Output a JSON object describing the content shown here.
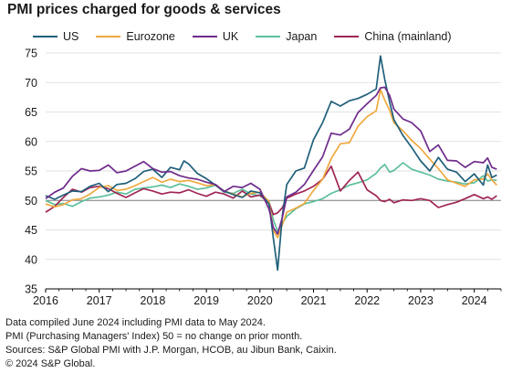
{
  "title": "PMI prices charged for goods & services",
  "notes": [
    "Data compiled June 2024 including PMI data to May 2024.",
    "PMI (Purchasing Managers' Index) 50 = no change on prior month.",
    "Sources: S&P Global PMI with J.P. Morgan, HCOB, au Jibun Bank, Caixin.",
    "© 2024 S&P Global."
  ],
  "chart_data": {
    "type": "line",
    "title": "PMI prices charged for goods & services",
    "xlabel": "",
    "ylabel": "",
    "xlim": [
      2016.0,
      2024.5
    ],
    "ylim": [
      35,
      75
    ],
    "yticks": [
      35,
      40,
      45,
      50,
      55,
      60,
      65,
      70,
      75
    ],
    "xticks": [
      "2016",
      "2017",
      "2018",
      "2019",
      "2020",
      "2021",
      "2022",
      "2023",
      "2024"
    ],
    "reference_line": 50,
    "grid": "horizontal",
    "legend_position": "top",
    "series": [
      {
        "name": "US",
        "color": "#1f5f7a",
        "points": [
          [
            2016.0,
            50.8
          ],
          [
            2016.17,
            50.2
          ],
          [
            2016.33,
            50.9
          ],
          [
            2016.5,
            51.6
          ],
          [
            2016.67,
            51.5
          ],
          [
            2016.83,
            52.4
          ],
          [
            2017.0,
            52.9
          ],
          [
            2017.17,
            51.5
          ],
          [
            2017.33,
            52.7
          ],
          [
            2017.5,
            52.9
          ],
          [
            2017.67,
            53.7
          ],
          [
            2017.83,
            54.9
          ],
          [
            2018.0,
            55.3
          ],
          [
            2018.17,
            53.9
          ],
          [
            2018.33,
            55.6
          ],
          [
            2018.5,
            55.2
          ],
          [
            2018.58,
            56.7
          ],
          [
            2018.67,
            56.2
          ],
          [
            2018.83,
            54.6
          ],
          [
            2019.0,
            53.7
          ],
          [
            2019.17,
            52.6
          ],
          [
            2019.33,
            51.6
          ],
          [
            2019.5,
            51.0
          ],
          [
            2019.67,
            50.5
          ],
          [
            2019.83,
            51.6
          ],
          [
            2020.0,
            51.3
          ],
          [
            2020.17,
            49.4
          ],
          [
            2020.25,
            43.6
          ],
          [
            2020.33,
            38.2
          ],
          [
            2020.42,
            47.6
          ],
          [
            2020.5,
            52.7
          ],
          [
            2020.67,
            55.0
          ],
          [
            2020.83,
            55.5
          ],
          [
            2021.0,
            60.3
          ],
          [
            2021.17,
            63.2
          ],
          [
            2021.33,
            66.8
          ],
          [
            2021.5,
            66.0
          ],
          [
            2021.67,
            66.9
          ],
          [
            2021.83,
            67.3
          ],
          [
            2022.0,
            68.0
          ],
          [
            2022.17,
            68.9
          ],
          [
            2022.25,
            74.5
          ],
          [
            2022.33,
            70.5
          ],
          [
            2022.42,
            66.7
          ],
          [
            2022.5,
            63.7
          ],
          [
            2022.67,
            61.0
          ],
          [
            2022.83,
            59.0
          ],
          [
            2023.0,
            56.7
          ],
          [
            2023.17,
            55.0
          ],
          [
            2023.33,
            57.3
          ],
          [
            2023.5,
            55.3
          ],
          [
            2023.67,
            54.8
          ],
          [
            2023.83,
            53.2
          ],
          [
            2024.0,
            54.5
          ],
          [
            2024.17,
            52.6
          ],
          [
            2024.25,
            56.0
          ],
          [
            2024.33,
            53.9
          ],
          [
            2024.42,
            54.3
          ]
        ]
      },
      {
        "name": "Eurozone",
        "color": "#f0a940",
        "points": [
          [
            2016.0,
            49.4
          ],
          [
            2016.17,
            48.9
          ],
          [
            2016.33,
            49.3
          ],
          [
            2016.5,
            50.1
          ],
          [
            2016.67,
            50.3
          ],
          [
            2016.83,
            51.1
          ],
          [
            2017.0,
            52.2
          ],
          [
            2017.17,
            52.5
          ],
          [
            2017.33,
            51.7
          ],
          [
            2017.5,
            51.9
          ],
          [
            2017.67,
            52.5
          ],
          [
            2017.83,
            53.2
          ],
          [
            2018.0,
            53.9
          ],
          [
            2018.17,
            53.1
          ],
          [
            2018.33,
            53.6
          ],
          [
            2018.5,
            53.2
          ],
          [
            2018.67,
            53.4
          ],
          [
            2018.83,
            53.0
          ],
          [
            2019.0,
            52.5
          ],
          [
            2019.17,
            52.7
          ],
          [
            2019.33,
            51.6
          ],
          [
            2019.5,
            51.1
          ],
          [
            2019.67,
            50.6
          ],
          [
            2019.83,
            51.2
          ],
          [
            2020.0,
            51.4
          ],
          [
            2020.17,
            49.8
          ],
          [
            2020.25,
            44.9
          ],
          [
            2020.33,
            43.7
          ],
          [
            2020.42,
            45.9
          ],
          [
            2020.5,
            48.0
          ],
          [
            2020.67,
            48.7
          ],
          [
            2020.83,
            49.5
          ],
          [
            2021.0,
            51.7
          ],
          [
            2021.17,
            53.6
          ],
          [
            2021.33,
            57.1
          ],
          [
            2021.5,
            59.6
          ],
          [
            2021.67,
            59.8
          ],
          [
            2021.83,
            62.6
          ],
          [
            2022.0,
            64.2
          ],
          [
            2022.17,
            65.2
          ],
          [
            2022.25,
            68.8
          ],
          [
            2022.33,
            67.0
          ],
          [
            2022.42,
            65.3
          ],
          [
            2022.5,
            63.2
          ],
          [
            2022.67,
            61.8
          ],
          [
            2022.83,
            60.2
          ],
          [
            2023.0,
            58.8
          ],
          [
            2023.17,
            57.0
          ],
          [
            2023.33,
            55.4
          ],
          [
            2023.5,
            53.5
          ],
          [
            2023.67,
            52.9
          ],
          [
            2023.83,
            52.4
          ],
          [
            2024.0,
            53.5
          ],
          [
            2024.17,
            53.6
          ],
          [
            2024.25,
            54.5
          ],
          [
            2024.33,
            53.5
          ],
          [
            2024.42,
            52.6
          ]
        ]
      },
      {
        "name": "UK",
        "color": "#6f2b8c",
        "points": [
          [
            2016.0,
            50.3
          ],
          [
            2016.17,
            51.4
          ],
          [
            2016.33,
            52.1
          ],
          [
            2016.5,
            54.1
          ],
          [
            2016.67,
            55.4
          ],
          [
            2016.83,
            55.0
          ],
          [
            2017.0,
            55.1
          ],
          [
            2017.17,
            56.0
          ],
          [
            2017.33,
            54.7
          ],
          [
            2017.5,
            55.0
          ],
          [
            2017.67,
            55.8
          ],
          [
            2017.83,
            56.6
          ],
          [
            2018.0,
            55.4
          ],
          [
            2018.17,
            54.8
          ],
          [
            2018.33,
            54.9
          ],
          [
            2018.5,
            54.2
          ],
          [
            2018.67,
            53.8
          ],
          [
            2018.83,
            53.6
          ],
          [
            2019.0,
            53.1
          ],
          [
            2019.17,
            52.7
          ],
          [
            2019.33,
            51.5
          ],
          [
            2019.5,
            52.4
          ],
          [
            2019.67,
            52.2
          ],
          [
            2019.83,
            52.9
          ],
          [
            2020.0,
            51.9
          ],
          [
            2020.17,
            48.5
          ],
          [
            2020.25,
            45.4
          ],
          [
            2020.33,
            44.3
          ],
          [
            2020.42,
            47.2
          ],
          [
            2020.5,
            50.6
          ],
          [
            2020.67,
            51.4
          ],
          [
            2020.83,
            52.7
          ],
          [
            2021.0,
            55.1
          ],
          [
            2021.17,
            57.4
          ],
          [
            2021.33,
            61.4
          ],
          [
            2021.5,
            61.1
          ],
          [
            2021.67,
            62.1
          ],
          [
            2021.83,
            64.9
          ],
          [
            2022.0,
            66.4
          ],
          [
            2022.17,
            67.8
          ],
          [
            2022.25,
            69.1
          ],
          [
            2022.33,
            69.2
          ],
          [
            2022.42,
            67.8
          ],
          [
            2022.5,
            65.5
          ],
          [
            2022.67,
            63.8
          ],
          [
            2022.83,
            63.2
          ],
          [
            2023.0,
            61.8
          ],
          [
            2023.17,
            58.3
          ],
          [
            2023.33,
            59.4
          ],
          [
            2023.5,
            56.8
          ],
          [
            2023.67,
            56.7
          ],
          [
            2023.83,
            55.6
          ],
          [
            2024.0,
            56.6
          ],
          [
            2024.17,
            56.4
          ],
          [
            2024.25,
            57.2
          ],
          [
            2024.33,
            55.6
          ],
          [
            2024.42,
            55.3
          ]
        ]
      },
      {
        "name": "Japan",
        "color": "#5dbf9a",
        "points": [
          [
            2016.0,
            50.0
          ],
          [
            2016.17,
            49.3
          ],
          [
            2016.33,
            49.5
          ],
          [
            2016.5,
            49.0
          ],
          [
            2016.67,
            49.8
          ],
          [
            2016.83,
            50.4
          ],
          [
            2017.0,
            50.6
          ],
          [
            2017.17,
            50.9
          ],
          [
            2017.33,
            51.4
          ],
          [
            2017.5,
            51.1
          ],
          [
            2017.67,
            51.9
          ],
          [
            2017.83,
            52.1
          ],
          [
            2018.0,
            52.3
          ],
          [
            2018.17,
            52.6
          ],
          [
            2018.33,
            52.2
          ],
          [
            2018.5,
            52.8
          ],
          [
            2018.67,
            52.4
          ],
          [
            2018.83,
            51.9
          ],
          [
            2019.0,
            52.1
          ],
          [
            2019.17,
            52.6
          ],
          [
            2019.33,
            51.4
          ],
          [
            2019.5,
            51.2
          ],
          [
            2019.67,
            51.9
          ],
          [
            2019.83,
            51.1
          ],
          [
            2020.0,
            50.8
          ],
          [
            2020.17,
            49.6
          ],
          [
            2020.25,
            46.7
          ],
          [
            2020.33,
            44.8
          ],
          [
            2020.42,
            46.2
          ],
          [
            2020.5,
            47.3
          ],
          [
            2020.67,
            48.6
          ],
          [
            2020.83,
            49.4
          ],
          [
            2021.0,
            49.8
          ],
          [
            2021.17,
            50.3
          ],
          [
            2021.33,
            51.2
          ],
          [
            2021.5,
            51.8
          ],
          [
            2021.67,
            52.6
          ],
          [
            2021.83,
            53.0
          ],
          [
            2022.0,
            53.5
          ],
          [
            2022.17,
            54.6
          ],
          [
            2022.25,
            55.5
          ],
          [
            2022.33,
            56.1
          ],
          [
            2022.42,
            54.8
          ],
          [
            2022.5,
            55.1
          ],
          [
            2022.67,
            56.4
          ],
          [
            2022.83,
            55.3
          ],
          [
            2023.0,
            54.8
          ],
          [
            2023.17,
            54.3
          ],
          [
            2023.33,
            53.6
          ],
          [
            2023.5,
            53.3
          ],
          [
            2023.67,
            53.1
          ],
          [
            2023.83,
            52.8
          ],
          [
            2024.0,
            53.0
          ],
          [
            2024.17,
            54.2
          ],
          [
            2024.25,
            53.3
          ],
          [
            2024.33,
            53.5
          ],
          [
            2024.42,
            53.4
          ]
        ]
      },
      {
        "name": "China (mainland)",
        "color": "#a02656",
        "points": [
          [
            2016.0,
            48.0
          ],
          [
            2016.17,
            49.0
          ],
          [
            2016.33,
            50.5
          ],
          [
            2016.5,
            51.9
          ],
          [
            2016.67,
            51.4
          ],
          [
            2016.83,
            52.2
          ],
          [
            2017.0,
            52.4
          ],
          [
            2017.17,
            52.0
          ],
          [
            2017.33,
            51.2
          ],
          [
            2017.5,
            50.5
          ],
          [
            2017.67,
            51.3
          ],
          [
            2017.83,
            52.0
          ],
          [
            2018.0,
            51.6
          ],
          [
            2018.17,
            51.1
          ],
          [
            2018.33,
            51.4
          ],
          [
            2018.5,
            51.3
          ],
          [
            2018.67,
            51.8
          ],
          [
            2018.83,
            51.2
          ],
          [
            2019.0,
            50.7
          ],
          [
            2019.17,
            51.4
          ],
          [
            2019.33,
            51.1
          ],
          [
            2019.5,
            50.4
          ],
          [
            2019.67,
            51.6
          ],
          [
            2019.83,
            50.6
          ],
          [
            2020.0,
            50.9
          ],
          [
            2020.17,
            49.6
          ],
          [
            2020.25,
            47.6
          ],
          [
            2020.33,
            47.9
          ],
          [
            2020.42,
            48.8
          ],
          [
            2020.5,
            50.4
          ],
          [
            2020.67,
            51.1
          ],
          [
            2020.83,
            51.6
          ],
          [
            2021.0,
            52.4
          ],
          [
            2021.17,
            53.6
          ],
          [
            2021.33,
            55.8
          ],
          [
            2021.5,
            51.6
          ],
          [
            2021.67,
            53.4
          ],
          [
            2021.83,
            54.8
          ],
          [
            2022.0,
            51.8
          ],
          [
            2022.17,
            50.8
          ],
          [
            2022.25,
            50.0
          ],
          [
            2022.33,
            49.8
          ],
          [
            2022.42,
            50.2
          ],
          [
            2022.5,
            49.6
          ],
          [
            2022.67,
            50.1
          ],
          [
            2022.83,
            50.0
          ],
          [
            2023.0,
            50.3
          ],
          [
            2023.17,
            50.0
          ],
          [
            2023.33,
            48.8
          ],
          [
            2023.5,
            49.3
          ],
          [
            2023.67,
            49.7
          ],
          [
            2023.83,
            50.3
          ],
          [
            2024.0,
            51.0
          ],
          [
            2024.17,
            50.3
          ],
          [
            2024.25,
            50.6
          ],
          [
            2024.33,
            50.2
          ],
          [
            2024.42,
            50.8
          ]
        ]
      }
    ]
  }
}
